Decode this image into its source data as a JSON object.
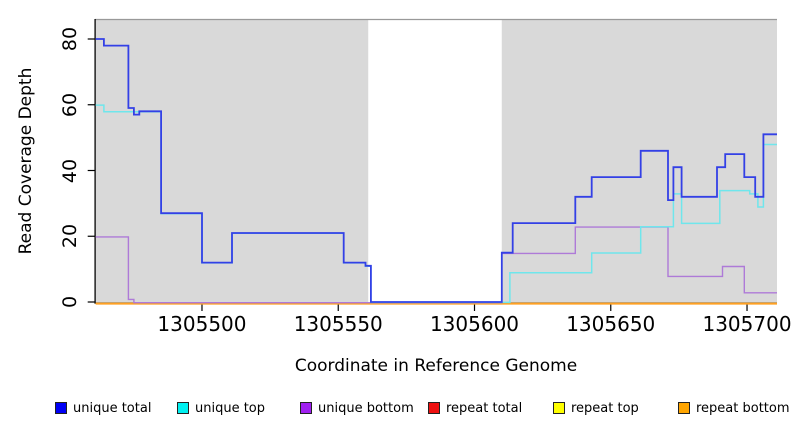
{
  "chart_data": {
    "type": "line",
    "step": true,
    "title": "",
    "xlabel": "Coordinate in Reference Genome",
    "ylabel": "Read Coverage Depth",
    "xlim": [
      1305461,
      1305711
    ],
    "ylim": [
      0,
      86
    ],
    "x_ticks": [
      1305500,
      1305550,
      1305600,
      1305650,
      1305700
    ],
    "y_ticks": [
      0,
      20,
      40,
      60,
      80
    ],
    "grid": false,
    "legend_position": "bottom",
    "plot_background": "#ffffff",
    "shading": {
      "color": "#d9d9d9",
      "regions": [
        [
          1305461,
          1305561
        ],
        [
          1305610,
          1305711
        ]
      ],
      "unshaded_gap": [
        1305561,
        1305610
      ],
      "top_border_color": "#999999"
    },
    "series": [
      {
        "name": "unique total",
        "legend_color": "#0000f5",
        "line_color": "#3340e6",
        "line_width": 1.8,
        "points": [
          [
            1305461,
            80
          ],
          [
            1305464,
            78
          ],
          [
            1305473,
            59
          ],
          [
            1305475,
            57
          ],
          [
            1305477,
            58
          ],
          [
            1305485,
            27
          ],
          [
            1305500,
            12
          ],
          [
            1305511,
            21
          ],
          [
            1305552,
            12
          ],
          [
            1305560,
            11
          ],
          [
            1305562,
            0
          ],
          [
            1305610,
            15
          ],
          [
            1305614,
            24
          ],
          [
            1305637,
            32
          ],
          [
            1305643,
            38
          ],
          [
            1305661,
            46
          ],
          [
            1305671,
            31
          ],
          [
            1305673,
            41
          ],
          [
            1305676,
            32
          ],
          [
            1305689,
            41
          ],
          [
            1305692,
            45
          ],
          [
            1305699,
            38
          ],
          [
            1305703,
            32
          ],
          [
            1305706,
            51
          ]
        ]
      },
      {
        "name": "unique top",
        "legend_color": "#00f0f0",
        "line_color": "#6fe6ec",
        "line_width": 1.5,
        "points": [
          [
            1305461,
            60
          ],
          [
            1305464,
            58
          ],
          [
            1305485,
            27
          ],
          [
            1305500,
            12
          ],
          [
            1305511,
            21
          ],
          [
            1305552,
            12
          ],
          [
            1305560,
            11
          ],
          [
            1305562,
            0
          ],
          [
            1305613,
            9
          ],
          [
            1305643,
            15
          ],
          [
            1305661,
            23
          ],
          [
            1305673,
            33
          ],
          [
            1305676,
            24
          ],
          [
            1305690,
            34
          ],
          [
            1305701,
            33
          ],
          [
            1305704,
            29
          ],
          [
            1305706,
            48
          ]
        ]
      },
      {
        "name": "unique bottom",
        "legend_color": "#a020f0",
        "line_color": "#ae7ad8",
        "line_width": 1.4,
        "points": [
          [
            1305461,
            20
          ],
          [
            1305473,
            1
          ],
          [
            1305475,
            0
          ],
          [
            1305610,
            15
          ],
          [
            1305637,
            23
          ],
          [
            1305671,
            8
          ],
          [
            1305691,
            11
          ],
          [
            1305699,
            3
          ]
        ]
      },
      {
        "name": "repeat total",
        "legend_color": "#ee1111",
        "line_color": "#e04868",
        "line_width": 1.3,
        "points": [
          [
            1305461,
            0
          ]
        ]
      },
      {
        "name": "repeat top",
        "legend_color": "#ffff00",
        "line_color": "#ffff00",
        "line_width": 1.3,
        "points": [
          [
            1305461,
            0
          ]
        ]
      },
      {
        "name": "repeat bottom",
        "legend_color": "#ffa500",
        "line_color": "#ffa022",
        "line_width": 1.7,
        "points": [
          [
            1305461,
            0
          ]
        ]
      }
    ]
  }
}
